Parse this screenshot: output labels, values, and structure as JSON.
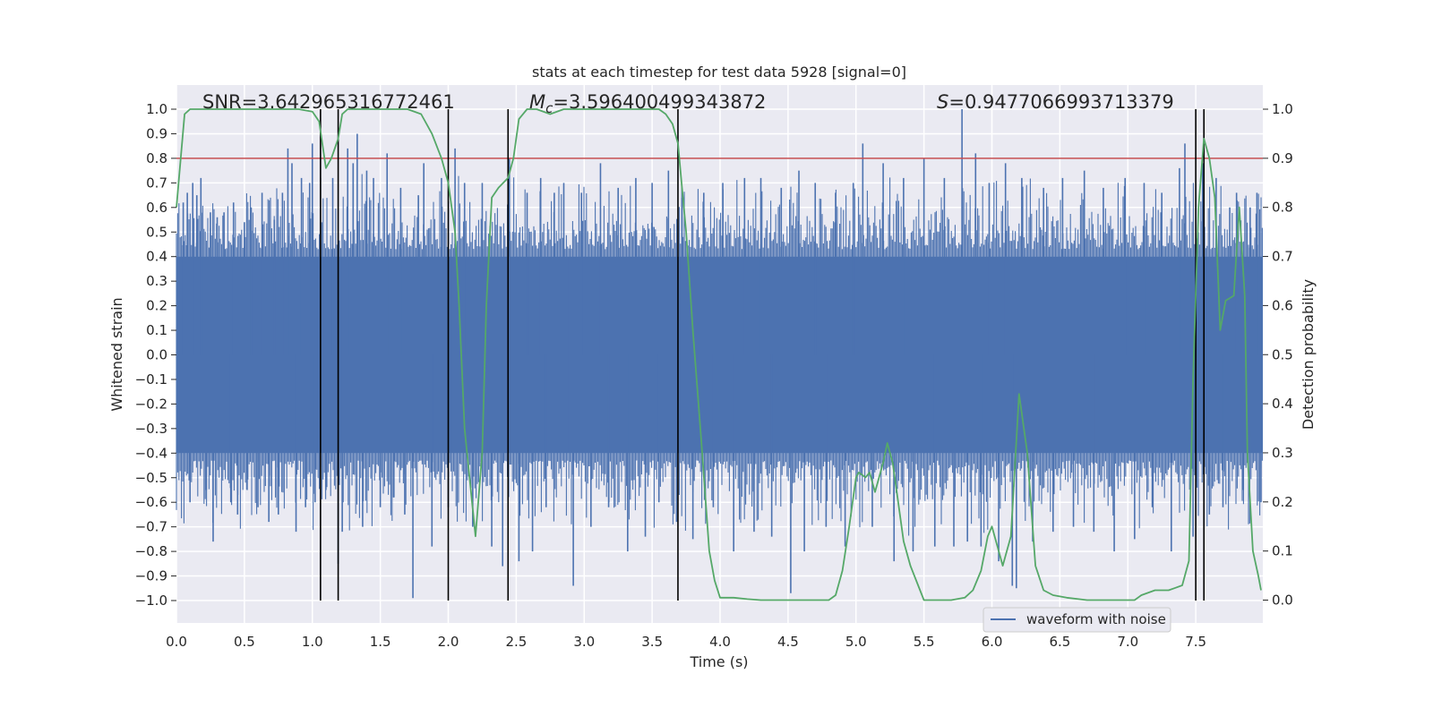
{
  "title": "stats at each timestep for test data 5928 [signal=0]",
  "chart_data": {
    "type": "line",
    "xlabel": "Time (s)",
    "ylabel_left": "Whitened strain",
    "ylabel_right": "Detection probability",
    "xlim": [
      0.0,
      8.0
    ],
    "ylim_left": [
      -1.08,
      1.1
    ],
    "ylim_right": [
      -0.04,
      1.04
    ],
    "x_ticks": [
      "0.0",
      "0.5",
      "1.0",
      "1.5",
      "2.0",
      "2.5",
      "3.0",
      "3.5",
      "4.0",
      "4.5",
      "5.0",
      "5.5",
      "6.0",
      "6.5",
      "7.0",
      "7.5"
    ],
    "y_left_ticks": [
      "1.0",
      "0.9",
      "0.8",
      "0.7",
      "0.6",
      "0.5",
      "0.4",
      "0.3",
      "0.2",
      "0.1",
      "0.0",
      "−0.1",
      "−0.2",
      "−0.3",
      "−0.4",
      "−0.5",
      "−0.6",
      "−0.7",
      "−0.8",
      "−0.9",
      "−1.0"
    ],
    "y_right_ticks": [
      "1.0",
      "0.9",
      "0.8",
      "0.7",
      "0.6",
      "0.5",
      "0.4",
      "0.3",
      "0.2",
      "0.1",
      "0.0"
    ],
    "grid": true,
    "legend_position": "bottom-right",
    "annotations": {
      "snr": "SNR=3.642965316772461",
      "mc_symbol": "M",
      "mc_sub": "c",
      "mc_value": "=3.596400499343872",
      "s_symbol": "S",
      "s_value": "=0.9477066993713379"
    },
    "threshold": {
      "value": 0.8,
      "color": "#c44e52"
    },
    "vertical_lines": [
      1.06,
      1.19,
      2.0,
      2.44,
      3.69,
      7.5,
      7.56
    ],
    "series": [
      {
        "name": "waveform with noise",
        "color": "#4c72b0",
        "axis": "left",
        "dense_band": 0.4,
        "spikes": [
          [
            0.05,
            0.62
          ],
          [
            0.08,
            0.66
          ],
          [
            0.1,
            -0.6
          ],
          [
            0.12,
            0.7
          ],
          [
            0.15,
            0.65
          ],
          [
            0.18,
            0.72
          ],
          [
            0.22,
            -0.55
          ],
          [
            0.25,
            0.58
          ],
          [
            0.27,
            -0.76
          ],
          [
            0.3,
            0.56
          ],
          [
            0.35,
            0.58
          ],
          [
            0.4,
            -0.6
          ],
          [
            0.42,
            0.62
          ],
          [
            0.45,
            -0.65
          ],
          [
            0.5,
            0.54
          ],
          [
            0.52,
            -0.55
          ],
          [
            0.55,
            0.6
          ],
          [
            0.6,
            -0.62
          ],
          [
            0.63,
            0.66
          ],
          [
            0.68,
            -0.68
          ],
          [
            0.72,
            0.55
          ],
          [
            0.75,
            -0.65
          ],
          [
            0.78,
            0.66
          ],
          [
            0.82,
            0.84
          ],
          [
            0.85,
            0.78
          ],
          [
            0.88,
            -0.72
          ],
          [
            0.92,
            0.72
          ],
          [
            0.95,
            -0.62
          ],
          [
            0.98,
            0.7
          ],
          [
            1.0,
            0.86
          ],
          [
            1.02,
            -0.6
          ],
          [
            1.06,
            0.72
          ],
          [
            1.1,
            -0.55
          ],
          [
            1.15,
            0.72
          ],
          [
            1.19,
            -0.85
          ],
          [
            1.22,
            -0.72
          ],
          [
            1.26,
            0.84
          ],
          [
            1.3,
            0.78
          ],
          [
            1.33,
            0.9
          ],
          [
            1.37,
            -0.7
          ],
          [
            1.4,
            0.75
          ],
          [
            1.45,
            0.72
          ],
          [
            1.5,
            -0.62
          ],
          [
            1.55,
            0.82
          ],
          [
            1.6,
            -0.58
          ],
          [
            1.65,
            0.68
          ],
          [
            1.68,
            -0.65
          ],
          [
            1.74,
            -0.99
          ],
          [
            1.78,
            0.65
          ],
          [
            1.82,
            0.78
          ],
          [
            1.88,
            -0.78
          ],
          [
            1.95,
            0.72
          ],
          [
            2.0,
            -0.62
          ],
          [
            2.05,
            0.84
          ],
          [
            2.12,
            0.7
          ],
          [
            2.18,
            -0.7
          ],
          [
            2.25,
            0.7
          ],
          [
            2.32,
            -0.78
          ],
          [
            2.4,
            -0.86
          ],
          [
            2.45,
            0.8
          ],
          [
            2.52,
            -0.84
          ],
          [
            2.58,
            0.66
          ],
          [
            2.62,
            -0.8
          ],
          [
            2.68,
            0.72
          ],
          [
            2.72,
            -0.62
          ],
          [
            2.78,
            0.66
          ],
          [
            2.85,
            0.7
          ],
          [
            2.92,
            -0.94
          ],
          [
            2.98,
            0.66
          ],
          [
            3.05,
            -0.7
          ],
          [
            3.12,
            0.78
          ],
          [
            3.18,
            -0.62
          ],
          [
            3.25,
            0.68
          ],
          [
            3.32,
            -0.8
          ],
          [
            3.38,
            0.72
          ],
          [
            3.45,
            -0.74
          ],
          [
            3.5,
            0.7
          ],
          [
            3.55,
            -0.6
          ],
          [
            3.62,
            0.75
          ],
          [
            3.68,
            -0.68
          ],
          [
            3.72,
            0.64
          ],
          [
            3.8,
            -0.75
          ],
          [
            3.88,
            0.66
          ],
          [
            3.95,
            -0.62
          ],
          [
            4.02,
            0.7
          ],
          [
            4.1,
            -0.8
          ],
          [
            4.18,
            0.72
          ],
          [
            4.25,
            -0.72
          ],
          [
            4.3,
            0.72
          ],
          [
            4.38,
            -0.74
          ],
          [
            4.45,
            0.68
          ],
          [
            4.52,
            -0.97
          ],
          [
            4.58,
            0.75
          ],
          [
            4.62,
            -0.8
          ],
          [
            4.7,
            0.7
          ],
          [
            4.78,
            -0.7
          ],
          [
            4.85,
            0.66
          ],
          [
            4.92,
            -0.78
          ],
          [
            4.98,
            0.7
          ],
          [
            5.05,
            0.86
          ],
          [
            5.12,
            -0.7
          ],
          [
            5.2,
            0.78
          ],
          [
            5.28,
            -0.84
          ],
          [
            5.35,
            0.72
          ],
          [
            5.42,
            -0.8
          ],
          [
            5.5,
            0.8
          ],
          [
            5.58,
            -0.78
          ],
          [
            5.65,
            0.72
          ],
          [
            5.72,
            -0.78
          ],
          [
            5.78,
            1.0
          ],
          [
            5.82,
            -0.76
          ],
          [
            5.88,
            0.82
          ],
          [
            5.92,
            -0.78
          ],
          [
            5.98,
            0.7
          ],
          [
            6.05,
            -0.84
          ],
          [
            6.1,
            0.78
          ],
          [
            6.15,
            -0.94
          ],
          [
            6.18,
            -0.95
          ],
          [
            6.22,
            0.72
          ],
          [
            6.3,
            -0.76
          ],
          [
            6.38,
            0.68
          ],
          [
            6.45,
            -0.72
          ],
          [
            6.52,
            0.72
          ],
          [
            6.6,
            -0.7
          ],
          [
            6.68,
            0.75
          ],
          [
            6.75,
            -0.72
          ],
          [
            6.82,
            0.68
          ],
          [
            6.9,
            -0.8
          ],
          [
            6.98,
            0.72
          ],
          [
            7.05,
            -0.75
          ],
          [
            7.12,
            0.7
          ],
          [
            7.18,
            -0.62
          ],
          [
            7.25,
            0.66
          ],
          [
            7.32,
            -0.8
          ],
          [
            7.38,
            0.76
          ],
          [
            7.42,
            0.86
          ],
          [
            7.48,
            -0.74
          ],
          [
            7.55,
            0.78
          ],
          [
            7.6,
            -0.65
          ],
          [
            7.65,
            0.72
          ],
          [
            7.7,
            -0.62
          ],
          [
            7.75,
            0.6
          ],
          [
            7.8,
            0.66
          ],
          [
            7.85,
            -0.55
          ],
          [
            7.9,
            0.6
          ],
          [
            7.95,
            0.66
          ],
          [
            7.98,
            -0.6
          ]
        ]
      },
      {
        "name": "detection probability",
        "color": "#55a868",
        "axis": "right",
        "x": [
          0.0,
          0.06,
          0.1,
          0.15,
          0.2,
          0.3,
          0.5,
          0.7,
          0.9,
          1.0,
          1.05,
          1.1,
          1.14,
          1.19,
          1.22,
          1.26,
          1.3,
          1.5,
          1.7,
          1.8,
          1.88,
          1.95,
          2.0,
          2.05,
          2.08,
          2.12,
          2.2,
          2.25,
          2.28,
          2.32,
          2.37,
          2.44,
          2.48,
          2.52,
          2.58,
          2.65,
          2.75,
          2.85,
          3.0,
          3.2,
          3.4,
          3.5,
          3.55,
          3.6,
          3.65,
          3.69,
          3.72,
          3.75,
          3.8,
          3.86,
          3.92,
          3.96,
          4.0,
          4.1,
          4.2,
          4.3,
          4.4,
          4.6,
          4.8,
          4.85,
          4.9,
          4.95,
          5.0,
          5.02,
          5.07,
          5.1,
          5.14,
          5.2,
          5.23,
          5.27,
          5.3,
          5.35,
          5.4,
          5.5,
          5.7,
          5.8,
          5.86,
          5.92,
          5.97,
          6.0,
          6.04,
          6.08,
          6.14,
          6.2,
          6.26,
          6.32,
          6.38,
          6.45,
          6.55,
          6.7,
          6.9,
          7.05,
          7.1,
          7.2,
          7.3,
          7.35,
          7.4,
          7.45,
          7.48,
          7.52,
          7.56,
          7.6,
          7.64,
          7.68,
          7.72,
          7.78,
          7.82,
          7.86,
          7.88,
          7.92,
          7.96,
          7.98
        ],
        "values": [
          0.8,
          0.99,
          1.0,
          1.0,
          1.0,
          1.0,
          1.0,
          1.0,
          1.0,
          0.995,
          0.975,
          0.88,
          0.9,
          0.94,
          0.99,
          1.0,
          1.0,
          1.0,
          1.0,
          0.99,
          0.95,
          0.9,
          0.85,
          0.75,
          0.6,
          0.35,
          0.13,
          0.3,
          0.6,
          0.82,
          0.84,
          0.86,
          0.9,
          0.98,
          1.0,
          1.0,
          0.99,
          1.0,
          1.0,
          1.0,
          1.0,
          1.0,
          1.0,
          0.99,
          0.97,
          0.93,
          0.84,
          0.75,
          0.55,
          0.33,
          0.1,
          0.04,
          0.005,
          0.005,
          0.002,
          0.0,
          0.0,
          0.0,
          0.0,
          0.01,
          0.06,
          0.15,
          0.25,
          0.26,
          0.25,
          0.26,
          0.22,
          0.28,
          0.32,
          0.28,
          0.22,
          0.12,
          0.07,
          0.0,
          0.0,
          0.005,
          0.02,
          0.06,
          0.13,
          0.15,
          0.11,
          0.07,
          0.13,
          0.42,
          0.3,
          0.07,
          0.02,
          0.01,
          0.005,
          0.0,
          0.0,
          0.0,
          0.01,
          0.02,
          0.02,
          0.025,
          0.03,
          0.08,
          0.45,
          0.8,
          0.94,
          0.9,
          0.82,
          0.55,
          0.61,
          0.62,
          0.8,
          0.62,
          0.3,
          0.1,
          0.05,
          0.02
        ]
      }
    ]
  }
}
